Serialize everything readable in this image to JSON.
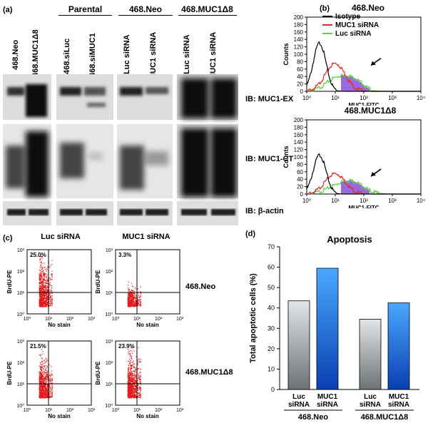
{
  "panel_a": {
    "letter": "(a)",
    "groups": [
      "Parental",
      "468.Neo",
      "468.MUC1Δ8"
    ],
    "lanes": [
      "468.Neo",
      "468.MUC1Δ8",
      "468.siLuc",
      "468.siMUC1",
      "Luc siRNA",
      "MUC1 siRNA",
      "Luc siRNA",
      "MUC1 siRNA"
    ],
    "blot_labels": [
      "IB: MUC1-EX",
      "IB: MUC1-CT",
      "IB: β-actin"
    ]
  },
  "panel_b": {
    "letter": "(b)",
    "titles": [
      "468.Neo",
      "468.MUC1Δ8"
    ],
    "legend": [
      "Isotype",
      "MUC1 siRNA",
      "Luc siRNA"
    ],
    "ylabel": "Counts",
    "xlabel": "MUC1-FITC",
    "yticks": [
      "0",
      "20",
      "40",
      "60",
      "80",
      "100",
      "120",
      "140",
      "160",
      "180",
      "200"
    ],
    "xticks": [
      "10⁰",
      "10¹",
      "10²",
      "10³",
      "10⁴"
    ],
    "colors": {
      "isotype": "#000000",
      "muc1": "#e8262a",
      "luc": "#5ad43c",
      "overlap": "#8a4fd8"
    }
  },
  "panel_c": {
    "letter": "(c)",
    "col_titles": [
      "Luc siRNA",
      "MUC1 siRNA"
    ],
    "row_labels": [
      "468.Neo",
      "468.MUC1Δ8"
    ],
    "percents": [
      "25.0%",
      "3.3%",
      "21.5%",
      "23.9%"
    ],
    "ylabel": "BrdU-PE",
    "xlabel": "No stain",
    "ticks": [
      "10⁰",
      "10¹",
      "10²",
      "10³"
    ]
  },
  "panel_d": {
    "letter": "(d)"
  },
  "chart_data": {
    "type": "bar",
    "title": "Apoptosis",
    "ylabel": "Total apoptotic cells (%)",
    "ylim": [
      0,
      70
    ],
    "yticks": [
      "0",
      "10",
      "20",
      "30",
      "40",
      "50",
      "60",
      "70"
    ],
    "categories": [
      "Luc siRNA",
      "MUC1 siRNA",
      "Luc siRNA",
      "MUC1 siRNA"
    ],
    "groups": [
      "468.Neo",
      "468.MUC1Δ8"
    ],
    "values": [
      43.5,
      59.5,
      34.5,
      42.5
    ],
    "colors": [
      "#a8aeb0",
      "#2d86ee",
      "#a8aeb0",
      "#2d86ee"
    ]
  }
}
